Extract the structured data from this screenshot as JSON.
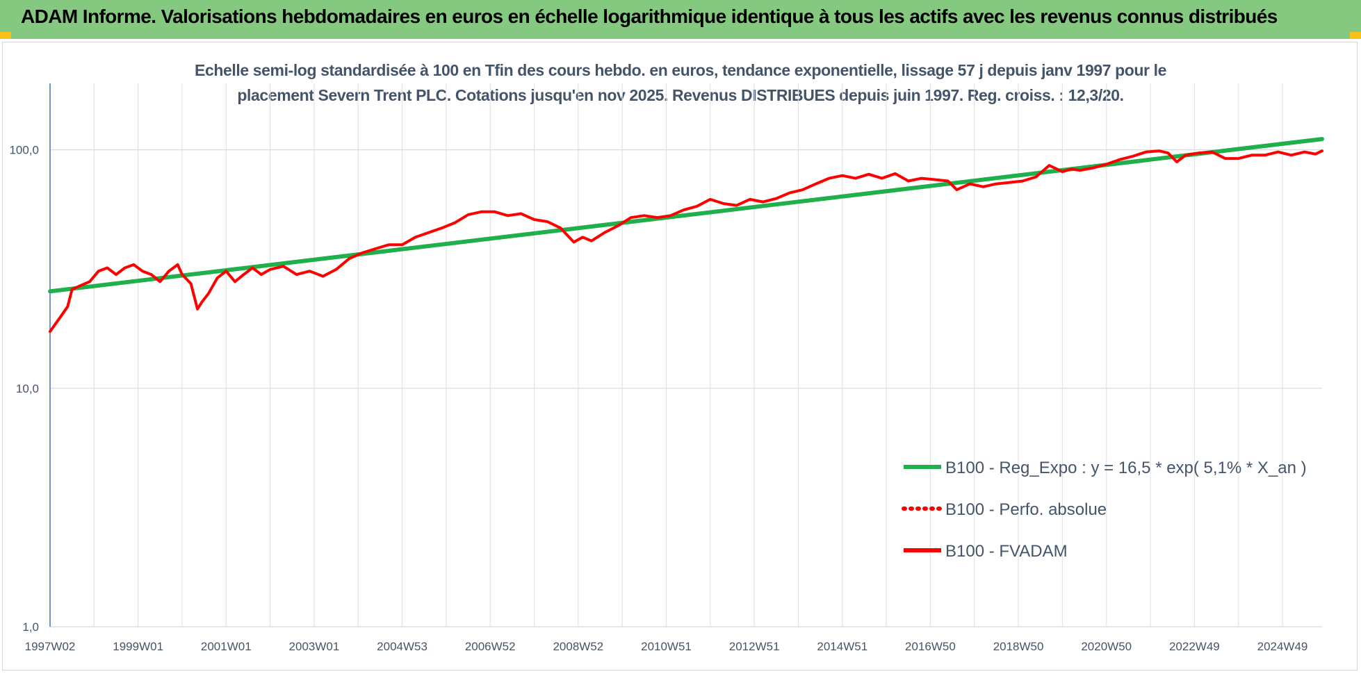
{
  "page": {
    "title": "ADAM Informe. Valorisations hebdomadaires en euros en échelle logarithmique identique à tous les actifs avec les revenus connus distribués",
    "banner_color": "#84c97f",
    "corner_color": "#f6c21a"
  },
  "chart_data": {
    "type": "line",
    "subtitle_line1": "Echelle semi-log standardisée à 100 en Tfin des cours hebdo. en euros, tendance exponentielle, lissage 57 j depuis janv 1997 pour le",
    "subtitle_line2": "placement Severn Trent PLC. Cotations jusqu'en nov 2025. Revenus DISTRIBUES depuis juin 1997. Reg. croiss. : 12,3/20.",
    "y_scale": "log",
    "ylim": [
      1,
      190
    ],
    "y_ticks": [
      1,
      10,
      100
    ],
    "y_tick_labels": [
      "1,0",
      "10,0",
      "100,0"
    ],
    "x_start": 1997.0,
    "x_end": 2025.9,
    "x_ticks": [
      {
        "label": "1997W02",
        "x": 1997.0
      },
      {
        "label": "1999W01",
        "x": 1999.0
      },
      {
        "label": "2001W01",
        "x": 2001.0
      },
      {
        "label": "2003W01",
        "x": 2003.0
      },
      {
        "label": "2004W53",
        "x": 2005.0
      },
      {
        "label": "2006W52",
        "x": 2007.0
      },
      {
        "label": "2008W52",
        "x": 2009.0
      },
      {
        "label": "2010W51",
        "x": 2011.0
      },
      {
        "label": "2012W51",
        "x": 2013.0
      },
      {
        "label": "2014W51",
        "x": 2015.0
      },
      {
        "label": "2016W50",
        "x": 2017.0
      },
      {
        "label": "2018W50",
        "x": 2019.0
      },
      {
        "label": "2020W50",
        "x": 2021.0
      },
      {
        "label": "2022W49",
        "x": 2023.0
      },
      {
        "label": "2024W49",
        "x": 2025.0
      }
    ],
    "grid": true,
    "legend_position": "bottom-right",
    "series": [
      {
        "name": "B100 - Reg_Expo : y = 16,5 * exp( 5,1% *  X_an )",
        "color": "#1fb04b",
        "style": "solid",
        "x": [
          1997.0,
          2025.9
        ],
        "y": [
          25.5,
          111
        ]
      },
      {
        "name": "B100 - Perfo. absolue",
        "color": "#ff0000",
        "style": "dotted",
        "x": [],
        "y": []
      },
      {
        "name": "B100 - FVADAM",
        "color": "#ff0000",
        "style": "solid",
        "x": [
          1997.0,
          1997.2,
          1997.4,
          1997.5,
          1997.7,
          1997.9,
          1998.1,
          1998.3,
          1998.5,
          1998.7,
          1998.9,
          1999.1,
          1999.3,
          1999.5,
          1999.7,
          1999.9,
          2000.0,
          2000.2,
          2000.35,
          2000.45,
          2000.6,
          2000.8,
          2001.0,
          2001.2,
          2001.4,
          2001.6,
          2001.8,
          2002.0,
          2002.3,
          2002.6,
          2002.9,
          2003.2,
          2003.5,
          2003.8,
          2004.1,
          2004.4,
          2004.7,
          2005.0,
          2005.3,
          2005.6,
          2005.9,
          2006.2,
          2006.5,
          2006.8,
          2007.1,
          2007.4,
          2007.7,
          2008.0,
          2008.3,
          2008.6,
          2008.9,
          2009.1,
          2009.3,
          2009.6,
          2009.9,
          2010.2,
          2010.5,
          2010.8,
          2011.1,
          2011.4,
          2011.7,
          2012.0,
          2012.3,
          2012.6,
          2012.9,
          2013.2,
          2013.5,
          2013.8,
          2014.1,
          2014.4,
          2014.7,
          2015.0,
          2015.3,
          2015.6,
          2015.9,
          2016.2,
          2016.5,
          2016.8,
          2017.1,
          2017.4,
          2017.6,
          2017.9,
          2018.2,
          2018.5,
          2018.8,
          2019.1,
          2019.4,
          2019.7,
          2020.0,
          2020.2,
          2020.4,
          2020.7,
          2021.0,
          2021.3,
          2021.6,
          2021.9,
          2022.2,
          2022.4,
          2022.6,
          2022.8,
          2023.1,
          2023.4,
          2023.7,
          2024.0,
          2024.3,
          2024.6,
          2024.9,
          2025.2,
          2025.5,
          2025.75,
          2025.9
        ],
        "y": [
          17.3,
          19.5,
          22.0,
          26.0,
          27.0,
          28.0,
          31.0,
          32.0,
          30.0,
          32.0,
          33.0,
          31.0,
          30.0,
          28.0,
          31.0,
          33.0,
          30.0,
          27.5,
          21.5,
          23.0,
          25.0,
          29.0,
          31.0,
          28.0,
          30.0,
          32.0,
          30.0,
          31.5,
          32.5,
          30.0,
          31.0,
          29.5,
          31.5,
          35.0,
          37.0,
          38.5,
          40.0,
          40.0,
          43.0,
          45.0,
          47.0,
          49.5,
          53.5,
          55.0,
          55.0,
          53.0,
          54.0,
          51.0,
          50.0,
          47.0,
          41.0,
          43.0,
          41.5,
          45.0,
          48.0,
          52.0,
          53.0,
          52.0,
          53.0,
          56.0,
          58.0,
          62.0,
          59.5,
          58.5,
          62.0,
          60.5,
          62.5,
          66.0,
          68.0,
          72.0,
          76.0,
          78.0,
          76.0,
          79.0,
          76.0,
          79.5,
          74.0,
          76.0,
          75.0,
          74.0,
          68.0,
          72.0,
          70.0,
          72.0,
          73.0,
          74.0,
          77.0,
          86.0,
          81.0,
          83.0,
          82.0,
          84.0,
          87.0,
          91.0,
          94.0,
          98.0,
          99.0,
          97.0,
          89.0,
          95.0,
          97.0,
          98.0,
          92.0,
          92.0,
          95.0,
          95.0,
          98.0,
          95.0,
          98.0,
          96.0,
          99.0
        ]
      }
    ]
  }
}
